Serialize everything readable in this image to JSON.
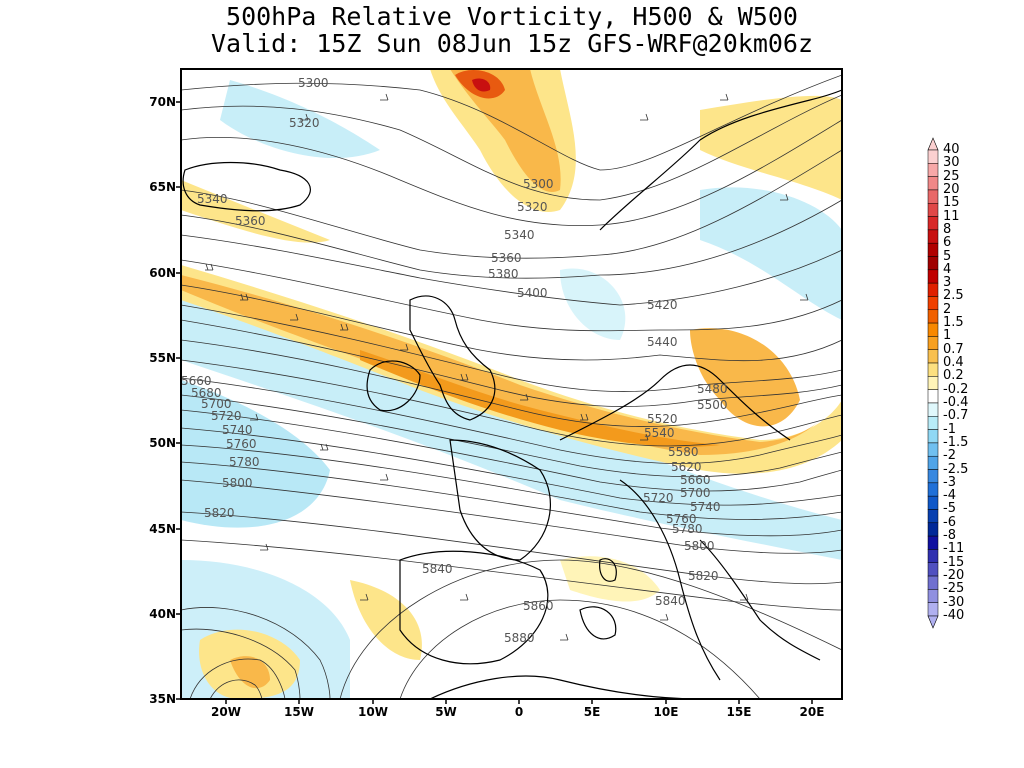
{
  "title": {
    "line1": "500hPa Relative Vorticity, H500 & W500",
    "line2": "Valid: 15Z Sun 08Jun 15z GFS-WRF@20km06z"
  },
  "axes": {
    "lat_labels": [
      "70N",
      "65N",
      "60N",
      "55N",
      "50N",
      "45N",
      "40N",
      "35N"
    ],
    "lon_labels": [
      "20W",
      "15W",
      "10W",
      "5W",
      "0",
      "5E",
      "10E",
      "15E",
      "20E"
    ]
  },
  "contour_labels": [
    "5300",
    "5320",
    "5340",
    "5360",
    "5380",
    "5400",
    "5420",
    "5440",
    "5480",
    "5500",
    "5520",
    "5540",
    "5580",
    "5620",
    "5660",
    "5680",
    "5700",
    "5720",
    "5740",
    "5760",
    "5780",
    "5800",
    "5820",
    "5840",
    "5860",
    "5880"
  ],
  "colorbar": {
    "labels": [
      "40",
      "30",
      "25",
      "20",
      "15",
      "11",
      "8",
      "6",
      "5",
      "4",
      "3",
      "2.5",
      "2",
      "1.5",
      "1",
      "0.7",
      "0.4",
      "0.2",
      "-0.2",
      "-0.4",
      "-0.7",
      "-1",
      "-1.5",
      "-2",
      "-2.5",
      "-3",
      "-4",
      "-5",
      "-6",
      "-8",
      "-11",
      "-15",
      "-20",
      "-25",
      "-30",
      "-40"
    ],
    "colors": [
      "#fbd0d0",
      "#f7a8a8",
      "#f08888",
      "#e86868",
      "#e04848",
      "#d82828",
      "#c81010",
      "#b00000",
      "#a00000",
      "#c00000",
      "#e02000",
      "#f04000",
      "#f06000",
      "#f88800",
      "#f8a020",
      "#f8c050",
      "#fce080",
      "#fff4b8",
      "#ffffff",
      "#e0f8fc",
      "#b8ecf8",
      "#90d8f4",
      "#70c0f0",
      "#50a4e8",
      "#3888e0",
      "#2070d8",
      "#1058c8",
      "#0840b0",
      "#002898",
      "#1010a0",
      "#3030b0",
      "#5050c0",
      "#7070d0",
      "#9090e0",
      "#b0b0f0"
    ]
  }
}
